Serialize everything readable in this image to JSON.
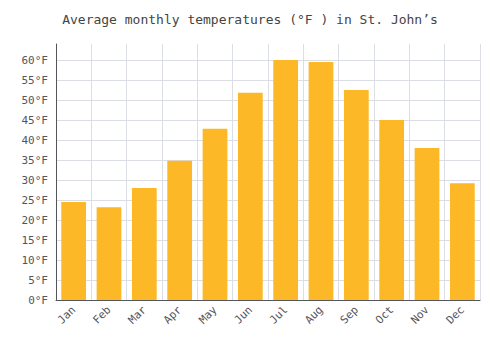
{
  "chart_data": {
    "type": "bar",
    "title": "Average monthly temperatures (°F ) in St. John’s",
    "categories": [
      "Jan",
      "Feb",
      "Mar",
      "Apr",
      "May",
      "Jun",
      "Jul",
      "Aug",
      "Sep",
      "Oct",
      "Nov",
      "Dec"
    ],
    "values": [
      24.5,
      23.2,
      28.0,
      34.8,
      42.8,
      51.8,
      60.0,
      59.5,
      52.5,
      45.0,
      38.0,
      29.2
    ],
    "color": "#FDB827",
    "ylim": [
      0,
      64
    ],
    "yticks": [
      {
        "value": 0,
        "label": "0°F"
      },
      {
        "value": 5,
        "label": "5°F"
      },
      {
        "value": 10,
        "label": "10°F"
      },
      {
        "value": 15,
        "label": "15°F"
      },
      {
        "value": 20,
        "label": "20°F"
      },
      {
        "value": 25,
        "label": "25°F"
      },
      {
        "value": 30,
        "label": "30°F"
      },
      {
        "value": 35,
        "label": "35°F"
      },
      {
        "value": 40,
        "label": "40°F"
      },
      {
        "value": 45,
        "label": "45°F"
      },
      {
        "value": 50,
        "label": "50°F"
      },
      {
        "value": 55,
        "label": "55°F"
      },
      {
        "value": 60,
        "label": "60°F"
      }
    ],
    "grid": true
  }
}
